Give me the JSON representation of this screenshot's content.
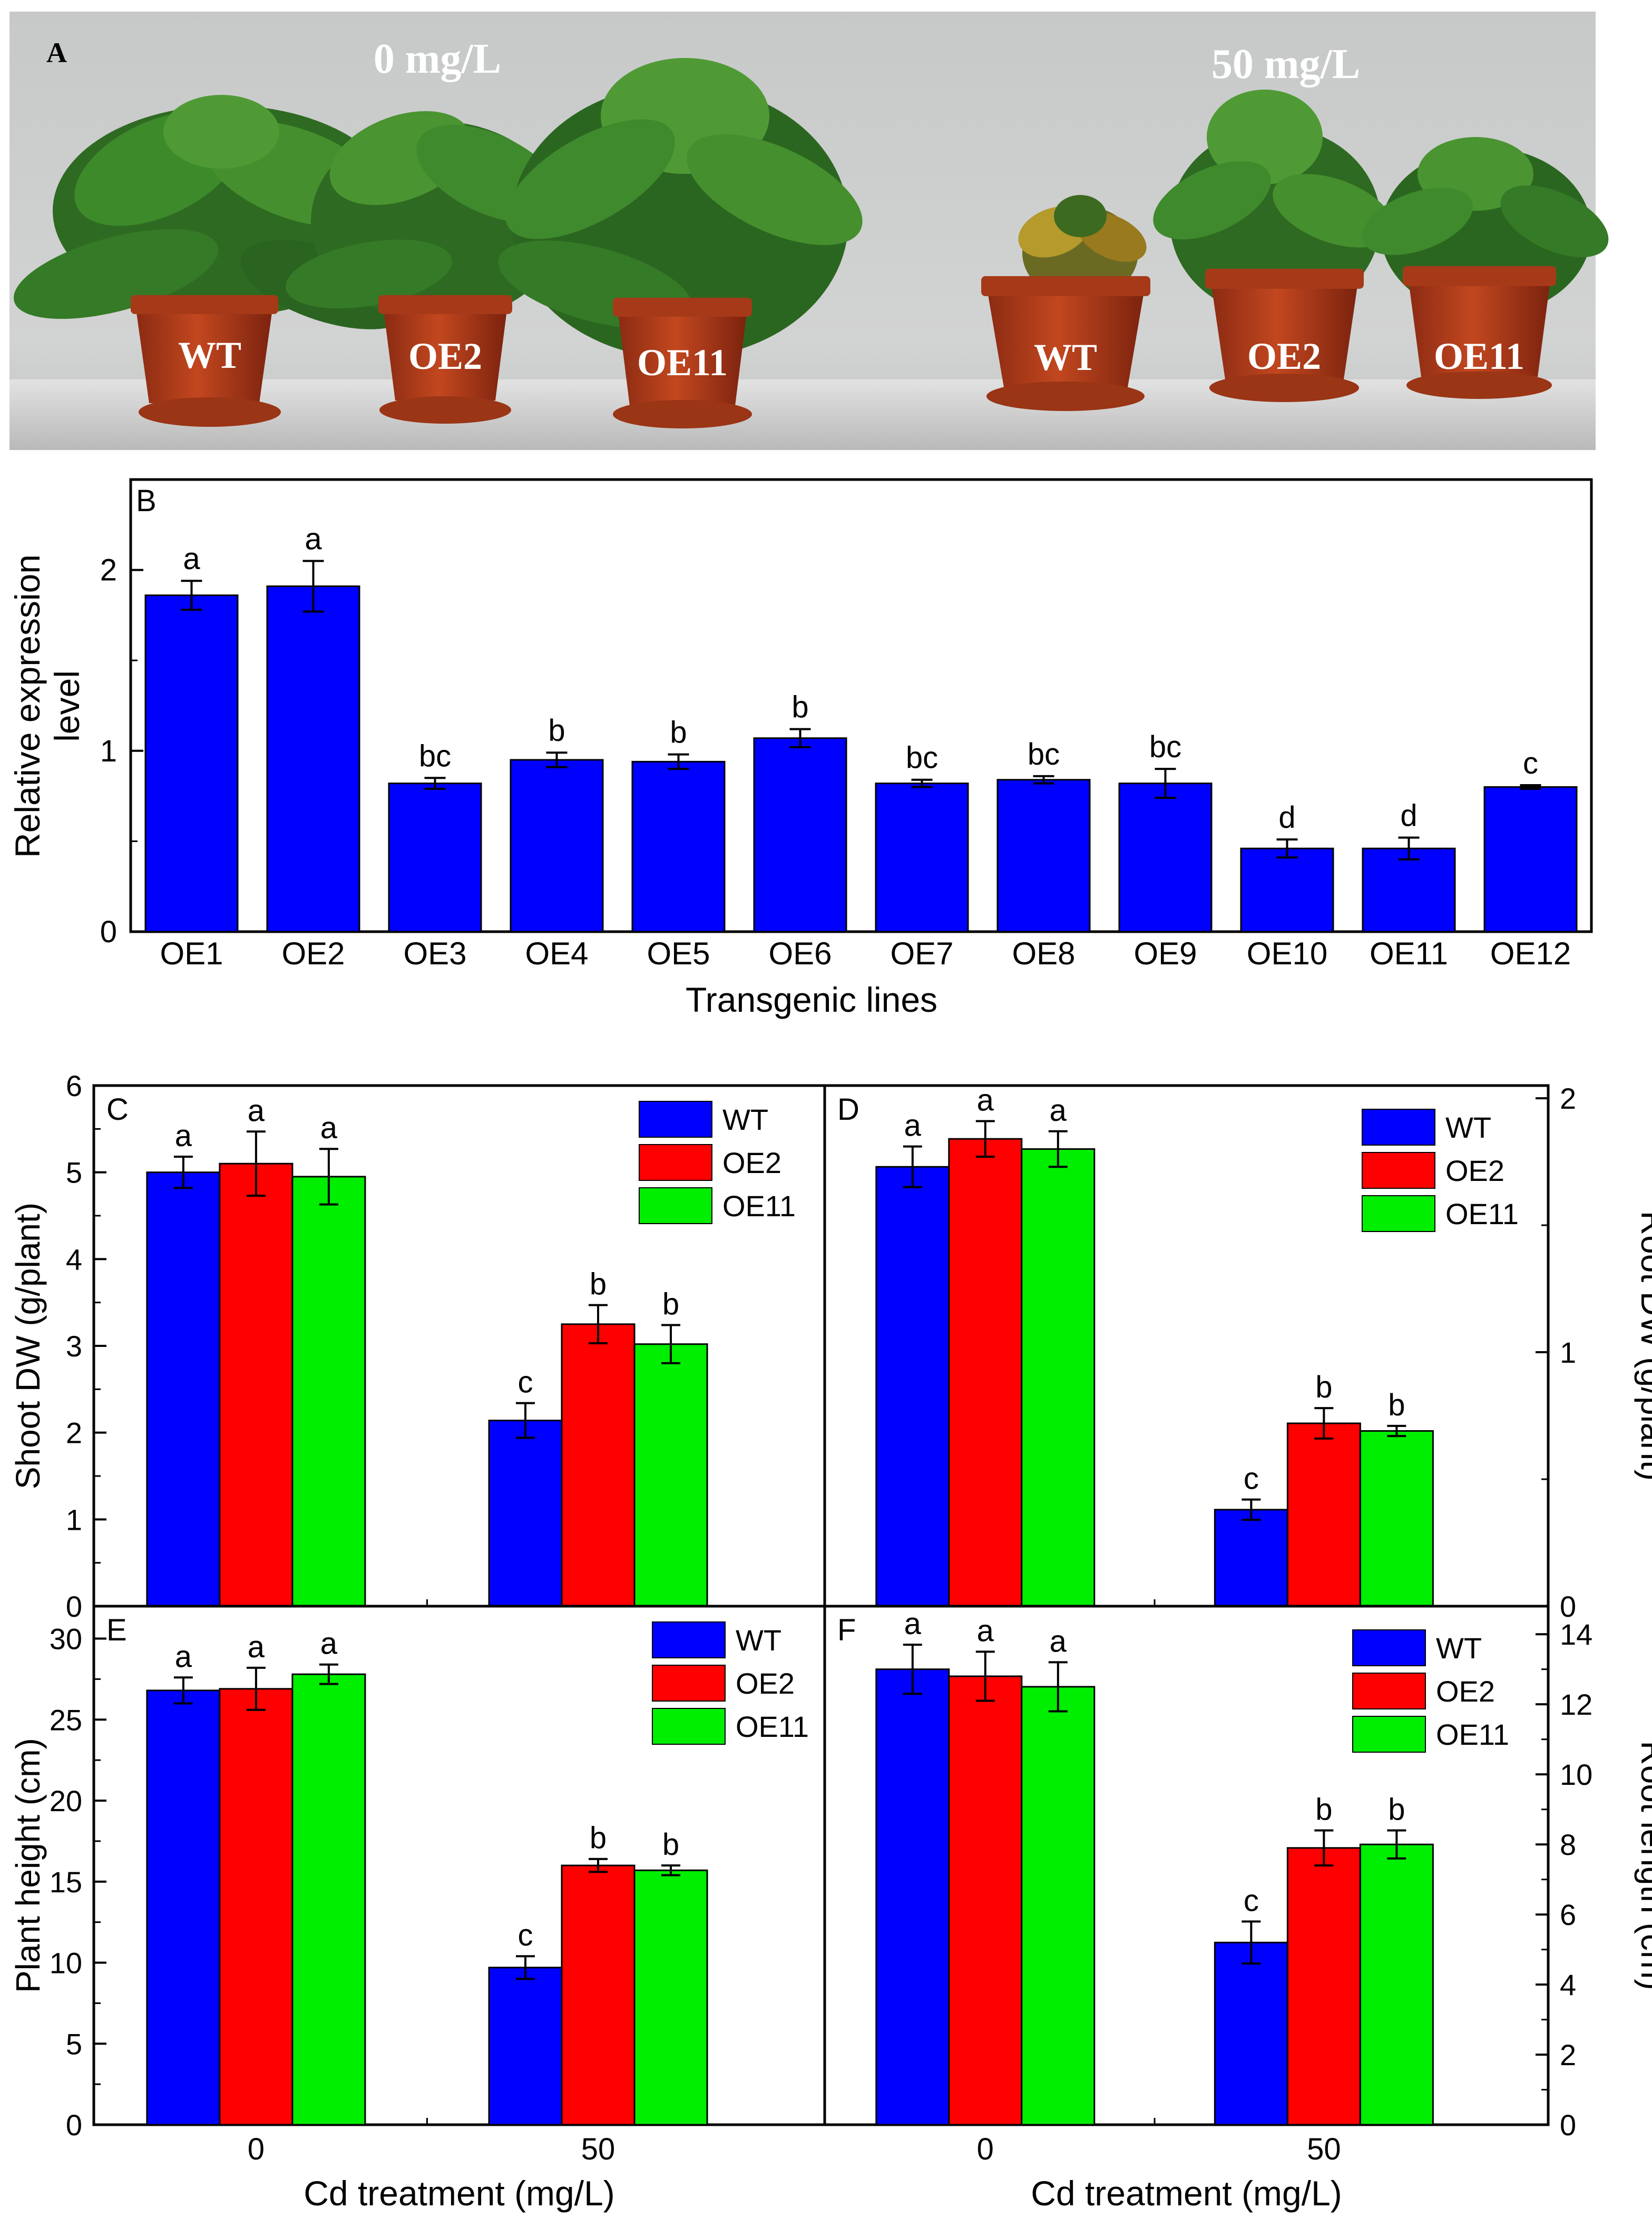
{
  "panel_a": {
    "letter": "A",
    "group_labels": [
      "0 mg/L",
      "50 mg/L"
    ],
    "pot_labels": [
      "WT",
      "OE2",
      "OE11",
      "WT",
      "OE2",
      "OE11"
    ]
  },
  "colors": {
    "wt": "#0000ff",
    "oe2": "#ff0000",
    "oe11": "#00ee00",
    "bar_b": "#0000ff"
  },
  "chart_data": [
    {
      "id": "B",
      "type": "bar",
      "letter": "B",
      "categories": [
        "OE1",
        "OE2",
        "OE3",
        "OE4",
        "OE5",
        "OE6",
        "OE7",
        "OE8",
        "OE9",
        "OE10",
        "OE11",
        "OE12"
      ],
      "values": [
        1.86,
        1.91,
        0.82,
        0.95,
        0.94,
        1.07,
        0.82,
        0.84,
        0.82,
        0.46,
        0.46,
        0.8
      ],
      "errors": [
        0.08,
        0.14,
        0.03,
        0.04,
        0.04,
        0.05,
        0.02,
        0.02,
        0.08,
        0.05,
        0.06,
        0.01
      ],
      "letters": [
        "a",
        "a",
        "bc",
        "b",
        "b",
        "b",
        "bc",
        "bc",
        "bc",
        "d",
        "d",
        "c"
      ],
      "xlabel": "Transgenic lines",
      "ylabel_lines": [
        "Relative expression",
        "level"
      ],
      "ylim": [
        0,
        2.5
      ],
      "yticks": [
        0,
        1,
        2
      ]
    },
    {
      "id": "C",
      "type": "bar",
      "letter": "C",
      "categories": [
        "0",
        "50"
      ],
      "series": [
        {
          "name": "WT",
          "values": [
            5.0,
            2.14
          ],
          "errors": [
            0.18,
            0.2
          ],
          "letters": [
            "a",
            "c"
          ]
        },
        {
          "name": "OE2",
          "values": [
            5.1,
            3.25
          ],
          "errors": [
            0.37,
            0.22
          ],
          "letters": [
            "a",
            "b"
          ]
        },
        {
          "name": "OE11",
          "values": [
            4.95,
            3.02
          ],
          "errors": [
            0.32,
            0.22
          ],
          "letters": [
            "a",
            "b"
          ]
        }
      ],
      "ylabel": "Shoot DW (g/plant)",
      "ylim": [
        0,
        6
      ],
      "yticks": [
        0,
        1,
        2,
        3,
        4,
        5,
        6
      ],
      "yaxis": "left"
    },
    {
      "id": "D",
      "type": "bar",
      "letter": "D",
      "categories": [
        "0",
        "50"
      ],
      "series": [
        {
          "name": "WT",
          "values": [
            1.73,
            0.38
          ],
          "errors": [
            0.08,
            0.04
          ],
          "letters": [
            "a",
            "c"
          ]
        },
        {
          "name": "OE2",
          "values": [
            1.84,
            0.72
          ],
          "errors": [
            0.07,
            0.06
          ],
          "letters": [
            "a",
            "b"
          ]
        },
        {
          "name": "OE11",
          "values": [
            1.8,
            0.69
          ],
          "errors": [
            0.07,
            0.02
          ],
          "letters": [
            "a",
            "b"
          ]
        }
      ],
      "ylabel": "Root DW (g/plant)",
      "ylim": [
        0,
        2.05
      ],
      "yticks": [
        0,
        1,
        2
      ],
      "yaxis": "right"
    },
    {
      "id": "E",
      "type": "bar",
      "letter": "E",
      "categories": [
        "0",
        "50"
      ],
      "series": [
        {
          "name": "WT",
          "values": [
            26.8,
            9.7
          ],
          "errors": [
            0.8,
            0.7
          ],
          "letters": [
            "a",
            "c"
          ]
        },
        {
          "name": "OE2",
          "values": [
            26.9,
            16.0
          ],
          "errors": [
            1.3,
            0.4
          ],
          "letters": [
            "a",
            "b"
          ]
        },
        {
          "name": "OE11",
          "values": [
            27.8,
            15.7
          ],
          "errors": [
            0.6,
            0.3
          ],
          "letters": [
            "a",
            "b"
          ]
        }
      ],
      "xlabel": "Cd treatment (mg/L)",
      "ylabel": "Plant height (cm)",
      "ylim": [
        0,
        32
      ],
      "yticks": [
        0,
        5,
        10,
        15,
        20,
        25,
        30
      ],
      "yaxis": "left"
    },
    {
      "id": "F",
      "type": "bar",
      "letter": "F",
      "categories": [
        "0",
        "50"
      ],
      "series": [
        {
          "name": "WT",
          "values": [
            13.0,
            5.2
          ],
          "errors": [
            0.7,
            0.6
          ],
          "letters": [
            "a",
            "c"
          ]
        },
        {
          "name": "OE2",
          "values": [
            12.8,
            7.9
          ],
          "errors": [
            0.7,
            0.5
          ],
          "letters": [
            "a",
            "b"
          ]
        },
        {
          "name": "OE11",
          "values": [
            12.5,
            8.0
          ],
          "errors": [
            0.7,
            0.4
          ],
          "letters": [
            "a",
            "b"
          ]
        }
      ],
      "xlabel": "Cd treatment (mg/L)",
      "ylabel": "Root length (cm)",
      "ylim": [
        0,
        14.8
      ],
      "yticks": [
        0,
        2,
        4,
        6,
        8,
        10,
        12,
        14
      ],
      "yaxis": "right"
    }
  ]
}
